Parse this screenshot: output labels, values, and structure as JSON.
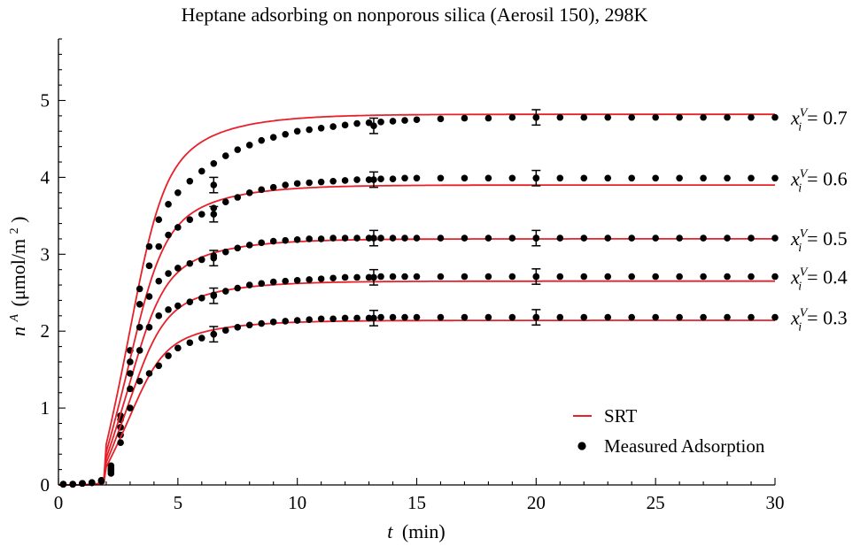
{
  "chart_data": {
    "type": "scatter",
    "title": "Heptane adsorbing on nonporous silica (Aerosil 150), 298K",
    "xlabel": {
      "var": "t",
      "unit": "(min)"
    },
    "ylabel": {
      "var": "n",
      "sup": "A",
      "unit_pre": "(μmol/m",
      "unit_sup": "2",
      "unit_post": ")"
    },
    "xlim": [
      0,
      30
    ],
    "ylim": [
      0,
      5.8
    ],
    "xticks": [
      0,
      5,
      10,
      15,
      20,
      25,
      30
    ],
    "yticks": [
      0,
      1,
      2,
      3,
      4,
      5
    ],
    "xtick_labels": [
      "0",
      "5",
      "10",
      "15",
      "20",
      "25",
      "30"
    ],
    "ytick_labels": [
      "0",
      "1",
      "2",
      "3",
      "4",
      "5"
    ],
    "legend": {
      "position": "bottom-right",
      "fit_label": "SRT",
      "points_label": "Measured Adsorption"
    },
    "colors": {
      "fit": "#e8202a",
      "points": "#000000"
    },
    "series": [
      {
        "label_var": "x",
        "label_sub": "i",
        "label_sup": "V",
        "label_value": "= 0.7",
        "plateau": 4.78,
        "fit_plateau": 4.82,
        "x": [
          0.2,
          0.6,
          1.0,
          1.4,
          1.8,
          2.2,
          2.6,
          3.0,
          3.4,
          3.8,
          4.2,
          4.6,
          5.0,
          5.5,
          6.0,
          6.5,
          7.0,
          7.5,
          8.0,
          8.5,
          9.0,
          9.5,
          10.0,
          10.5,
          11.0,
          11.5,
          12.0,
          12.5,
          13.0,
          13.5,
          14.0,
          14.5,
          15.0,
          16,
          17,
          18,
          19,
          20,
          21,
          22,
          23,
          24,
          25,
          26,
          27,
          28,
          29,
          30
        ],
        "y": [
          0.01,
          0.01,
          0.02,
          0.03,
          0.06,
          0.25,
          0.9,
          1.75,
          2.55,
          3.1,
          3.45,
          3.65,
          3.8,
          3.95,
          4.08,
          4.18,
          4.28,
          4.36,
          4.42,
          4.48,
          4.52,
          4.56,
          4.6,
          4.62,
          4.64,
          4.66,
          4.68,
          4.7,
          4.71,
          4.72,
          4.73,
          4.74,
          4.75,
          4.76,
          4.77,
          4.77,
          4.78,
          4.78,
          4.78,
          4.78,
          4.78,
          4.78,
          4.78,
          4.78,
          4.78,
          4.78,
          4.78,
          4.78
        ],
        "error_x": [
          6.5,
          13.2,
          20.0
        ],
        "error_y": [
          3.9,
          4.67,
          4.78
        ],
        "error_half": 0.1
      },
      {
        "label_var": "x",
        "label_sub": "i",
        "label_sup": "V",
        "label_value": "= 0.6",
        "plateau": 3.99,
        "fit_plateau": 3.9,
        "x": [
          0.2,
          0.6,
          1.0,
          1.4,
          1.8,
          2.2,
          2.6,
          3.0,
          3.4,
          3.8,
          4.2,
          4.6,
          5.0,
          5.5,
          6.0,
          6.5,
          7.0,
          7.5,
          8.0,
          8.5,
          9.0,
          9.5,
          10.0,
          10.5,
          11.0,
          11.5,
          12.0,
          12.5,
          13.0,
          13.5,
          14.0,
          14.5,
          15.0,
          16,
          17,
          18,
          19,
          20,
          21,
          22,
          23,
          24,
          25,
          26,
          27,
          28,
          29,
          30
        ],
        "y": [
          0.01,
          0.01,
          0.02,
          0.03,
          0.06,
          0.22,
          0.85,
          1.6,
          2.35,
          2.85,
          3.1,
          3.25,
          3.35,
          3.45,
          3.52,
          3.6,
          3.68,
          3.74,
          3.8,
          3.84,
          3.87,
          3.9,
          3.92,
          3.93,
          3.94,
          3.95,
          3.96,
          3.97,
          3.97,
          3.98,
          3.98,
          3.99,
          3.99,
          3.99,
          3.99,
          3.99,
          3.99,
          3.99,
          3.99,
          3.99,
          3.99,
          3.99,
          3.99,
          3.99,
          3.99,
          3.99,
          3.99,
          3.99
        ],
        "error_x": [
          6.5,
          13.2,
          20.0
        ],
        "error_y": [
          3.52,
          3.97,
          3.99
        ],
        "error_half": 0.1
      },
      {
        "label_var": "x",
        "label_sub": "i",
        "label_sup": "V",
        "label_value": "= 0.5",
        "plateau": 3.21,
        "fit_plateau": 3.2,
        "x": [
          0.2,
          0.6,
          1.0,
          1.4,
          1.8,
          2.2,
          2.6,
          3.0,
          3.4,
          3.8,
          4.2,
          4.6,
          5.0,
          5.5,
          6.0,
          6.5,
          7.0,
          7.5,
          8.0,
          8.5,
          9.0,
          9.5,
          10.0,
          10.5,
          11.0,
          11.5,
          12.0,
          12.5,
          13.0,
          13.5,
          14.0,
          14.5,
          15.0,
          16,
          17,
          18,
          19,
          20,
          21,
          22,
          23,
          24,
          25,
          26,
          27,
          28,
          29,
          30
        ],
        "y": [
          0.01,
          0.01,
          0.02,
          0.03,
          0.05,
          0.2,
          0.75,
          1.45,
          2.05,
          2.45,
          2.65,
          2.75,
          2.82,
          2.88,
          2.93,
          2.98,
          3.03,
          3.08,
          3.12,
          3.15,
          3.17,
          3.18,
          3.19,
          3.2,
          3.2,
          3.21,
          3.21,
          3.21,
          3.21,
          3.21,
          3.21,
          3.21,
          3.21,
          3.21,
          3.21,
          3.21,
          3.21,
          3.21,
          3.21,
          3.21,
          3.21,
          3.21,
          3.21,
          3.21,
          3.21,
          3.21,
          3.21,
          3.21
        ],
        "error_x": [
          6.5,
          13.2,
          20.0
        ],
        "error_y": [
          2.95,
          3.21,
          3.21
        ],
        "error_half": 0.1
      },
      {
        "label_var": "x",
        "label_sub": "i",
        "label_sup": "V",
        "label_value": "= 0.4",
        "plateau": 2.71,
        "fit_plateau": 2.65,
        "x": [
          0.2,
          0.6,
          1.0,
          1.4,
          1.8,
          2.2,
          2.6,
          3.0,
          3.4,
          3.8,
          4.2,
          4.6,
          5.0,
          5.5,
          6.0,
          6.5,
          7.0,
          7.5,
          8.0,
          8.5,
          9.0,
          9.5,
          10.0,
          10.5,
          11.0,
          11.5,
          12.0,
          12.5,
          13.0,
          13.5,
          14.0,
          14.5,
          15.0,
          16,
          17,
          18,
          19,
          20,
          21,
          22,
          23,
          24,
          25,
          26,
          27,
          28,
          29,
          30
        ],
        "y": [
          0.01,
          0.01,
          0.02,
          0.03,
          0.05,
          0.18,
          0.65,
          1.25,
          1.75,
          2.05,
          2.2,
          2.28,
          2.33,
          2.38,
          2.43,
          2.47,
          2.52,
          2.56,
          2.6,
          2.62,
          2.64,
          2.65,
          2.66,
          2.67,
          2.68,
          2.69,
          2.7,
          2.7,
          2.7,
          2.71,
          2.71,
          2.71,
          2.71,
          2.71,
          2.71,
          2.71,
          2.71,
          2.71,
          2.71,
          2.71,
          2.71,
          2.71,
          2.71,
          2.71,
          2.71,
          2.71,
          2.71,
          2.71
        ],
        "error_x": [
          6.5,
          13.2,
          20.0
        ],
        "error_y": [
          2.46,
          2.7,
          2.71
        ],
        "error_half": 0.1
      },
      {
        "label_var": "x",
        "label_sub": "i",
        "label_sup": "V",
        "label_value": "= 0.3",
        "plateau": 2.18,
        "fit_plateau": 2.14,
        "x": [
          0.2,
          0.6,
          1.0,
          1.4,
          1.8,
          2.2,
          2.6,
          3.0,
          3.4,
          3.8,
          4.2,
          4.6,
          5.0,
          5.5,
          6.0,
          6.5,
          7.0,
          7.5,
          8.0,
          8.5,
          9.0,
          9.5,
          10.0,
          10.5,
          11.0,
          11.5,
          12.0,
          12.5,
          13.0,
          13.5,
          14.0,
          14.5,
          15.0,
          16,
          17,
          18,
          19,
          20,
          21,
          22,
          23,
          24,
          25,
          26,
          27,
          28,
          29,
          30
        ],
        "y": [
          0.01,
          0.01,
          0.02,
          0.03,
          0.05,
          0.15,
          0.55,
          1.0,
          1.35,
          1.45,
          1.55,
          1.68,
          1.78,
          1.85,
          1.91,
          1.96,
          2.01,
          2.05,
          2.08,
          2.1,
          2.12,
          2.13,
          2.14,
          2.15,
          2.16,
          2.16,
          2.17,
          2.17,
          2.17,
          2.18,
          2.18,
          2.18,
          2.18,
          2.18,
          2.18,
          2.18,
          2.18,
          2.18,
          2.18,
          2.18,
          2.18,
          2.18,
          2.18,
          2.18,
          2.18,
          2.18,
          2.18,
          2.18
        ],
        "error_x": [
          6.5,
          13.2,
          20.0
        ],
        "error_y": [
          1.96,
          2.17,
          2.18
        ],
        "error_half": 0.1
      }
    ]
  }
}
